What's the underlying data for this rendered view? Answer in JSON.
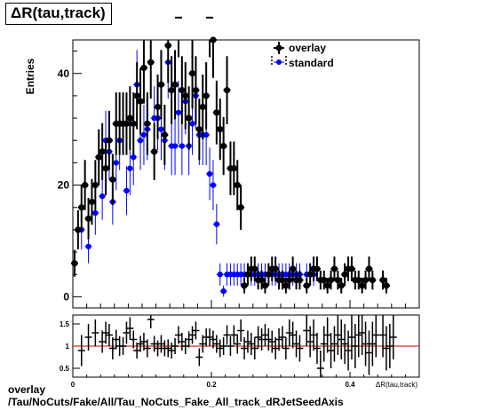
{
  "title": "ΔR(tau,track)",
  "caption": {
    "line1": "overlay",
    "line2": "/Tau/NoCuts/Fake/All/Tau_NoCuts_Fake_All_track_dRJetSeedAxis"
  },
  "colors": {
    "overlay": "#000000",
    "standard": "#0000ff",
    "ratio_line": "#cc0000"
  },
  "chart_data": [
    {
      "type": "scatter",
      "ylabel": "Entries",
      "xlabel": "ΔR(tau,track)",
      "xlim": [
        0,
        0.5
      ],
      "ylim": [
        -2,
        46
      ],
      "yticks": [
        0,
        20,
        40
      ],
      "legend_position": "top-right",
      "series": [
        {
          "name": "overlay",
          "x": [
            0.0025,
            0.0075,
            0.0125,
            0.0175,
            0.0225,
            0.0275,
            0.0325,
            0.0375,
            0.0425,
            0.0475,
            0.0525,
            0.0575,
            0.0625,
            0.0675,
            0.0725,
            0.0775,
            0.0825,
            0.0875,
            0.0925,
            0.0975,
            0.1025,
            0.1075,
            0.1125,
            0.1175,
            0.1225,
            0.1275,
            0.1325,
            0.1375,
            0.1425,
            0.1475,
            0.1525,
            0.1575,
            0.1625,
            0.1675,
            0.1725,
            0.1775,
            0.1825,
            0.1875,
            0.1925,
            0.1975,
            0.2025,
            0.2075,
            0.2125,
            0.2175,
            0.2225,
            0.2275,
            0.2325,
            0.2375,
            0.2425,
            0.2475,
            0.2525,
            0.2575,
            0.2625,
            0.2675,
            0.2725,
            0.2775,
            0.2825,
            0.2875,
            0.2925,
            0.2975,
            0.3025,
            0.3075,
            0.3125,
            0.3175,
            0.3225,
            0.3275,
            0.3375,
            0.3425,
            0.3475,
            0.3525,
            0.3575,
            0.3625,
            0.3675,
            0.3725,
            0.3775,
            0.3825,
            0.3875,
            0.3925,
            0.3975,
            0.4025,
            0.4075,
            0.4125,
            0.4175,
            0.4225,
            0.4275,
            0.4325,
            0.4475,
            0.4525
          ],
          "y": [
            6,
            12,
            16,
            20,
            14,
            17,
            20,
            25,
            26,
            23,
            28,
            21,
            31,
            31,
            31,
            31,
            32,
            31,
            36,
            35,
            41,
            31,
            42,
            26,
            34,
            38,
            29,
            45,
            37,
            38,
            50,
            37,
            36,
            32,
            40,
            37,
            30,
            34,
            36,
            50,
            46,
            33,
            30,
            27,
            37,
            23,
            23,
            20,
            16,
            2,
            4,
            5,
            5,
            3,
            3,
            2,
            4,
            5,
            5,
            3,
            3,
            2,
            3,
            5,
            3,
            3,
            2,
            4,
            5,
            5,
            3,
            3,
            2,
            3,
            5,
            3,
            2,
            4,
            5,
            5,
            3,
            3,
            2,
            3,
            5,
            3,
            3,
            2
          ],
          "err": [
            2.4,
            3.5,
            4,
            4.5,
            3.7,
            4.1,
            4.5,
            5,
            5.1,
            4.8,
            5.3,
            4.6,
            5.6,
            5.6,
            5.6,
            5.6,
            5.7,
            5.6,
            6,
            5.9,
            6.4,
            5.6,
            6.5,
            5.1,
            5.8,
            6.2,
            5.4,
            6.7,
            6.1,
            6.2,
            7.1,
            6.1,
            6,
            5.7,
            6.3,
            6.1,
            5.5,
            5.8,
            6,
            7.1,
            6.8,
            5.7,
            5.5,
            5.2,
            6.1,
            4.8,
            4.8,
            4.5,
            4,
            1.4,
            2,
            2.2,
            2.2,
            1.7,
            1.7,
            1.4,
            2,
            2.2,
            2.2,
            1.7,
            1.7,
            1.4,
            1.7,
            2.2,
            1.7,
            1.7,
            1.4,
            2,
            2.2,
            2.2,
            1.7,
            1.7,
            1.4,
            1.7,
            2.2,
            1.7,
            1.4,
            2,
            2.2,
            2.2,
            1.7,
            1.7,
            1.4,
            1.7,
            2.2,
            1.7,
            1.7,
            1.4
          ]
        },
        {
          "name": "standard",
          "x": [
            0.0125,
            0.0225,
            0.0325,
            0.0425,
            0.0475,
            0.0525,
            0.0575,
            0.0625,
            0.0675,
            0.0725,
            0.0775,
            0.0825,
            0.0875,
            0.0925,
            0.0975,
            0.1025,
            0.1075,
            0.1125,
            0.1175,
            0.1225,
            0.1275,
            0.1325,
            0.1375,
            0.1425,
            0.1475,
            0.1525,
            0.1575,
            0.1625,
            0.1675,
            0.1725,
            0.1775,
            0.1825,
            0.1875,
            0.1925,
            0.1975,
            0.2025,
            0.2075,
            0.2125,
            0.2175,
            0.2225,
            0.2275,
            0.2325,
            0.2375,
            0.2425,
            0.2475,
            0.2525,
            0.2575,
            0.2625,
            0.2675,
            0.2725,
            0.2775,
            0.2825,
            0.2875,
            0.2925,
            0.2975,
            0.3025,
            0.3075,
            0.3125,
            0.3175,
            0.3225,
            0.3275,
            0.3375,
            0.3425,
            0.3475
          ],
          "y": [
            12,
            9,
            15,
            18,
            28,
            26,
            17,
            24,
            28,
            31,
            19,
            23,
            25,
            38,
            28,
            29,
            30,
            42,
            32,
            32,
            30,
            28,
            42,
            27,
            27,
            33,
            27,
            35,
            27,
            31,
            36,
            29,
            29,
            29,
            22,
            20,
            13,
            4,
            1,
            4,
            4,
            4,
            4,
            4,
            4,
            4,
            4,
            4,
            4,
            4,
            4,
            4,
            4,
            4,
            4,
            4,
            4,
            4,
            4,
            4,
            4,
            4,
            4,
            4
          ],
          "err": [
            3.5,
            3,
            3.9,
            4.2,
            5.3,
            5.1,
            4.1,
            4.9,
            5.3,
            5.6,
            4.4,
            4.8,
            5,
            6.2,
            5.3,
            5.4,
            5.5,
            6.5,
            5.7,
            5.7,
            5.5,
            5.3,
            6.5,
            5.2,
            5.2,
            5.7,
            5.2,
            5.9,
            5.2,
            5.6,
            6,
            5.4,
            5.4,
            5.4,
            4.7,
            4.5,
            3.6,
            2,
            1,
            2,
            2,
            2,
            2,
            2,
            2,
            2,
            2,
            2,
            2,
            2,
            2,
            2,
            2,
            2,
            2,
            2,
            2,
            2,
            2,
            2,
            2,
            2,
            2,
            2
          ]
        }
      ]
    },
    {
      "type": "scatter",
      "xlim": [
        0,
        0.5
      ],
      "ylim": [
        0.3,
        1.7
      ],
      "yticks": [
        0.5,
        1,
        1.5
      ],
      "xticks": [
        0,
        0.2,
        0.4
      ],
      "xlabel": "ΔR(tau,track)",
      "reference_line": 1,
      "series": [
        {
          "name": "ratio",
          "x": [
            0.0125,
            0.0225,
            0.0325,
            0.0425,
            0.0475,
            0.0525,
            0.0575,
            0.0625,
            0.0675,
            0.0725,
            0.0775,
            0.0825,
            0.0875,
            0.0925,
            0.0975,
            0.1025,
            0.1075,
            0.1125,
            0.1175,
            0.1225,
            0.1275,
            0.1325,
            0.1375,
            0.1425,
            0.1475,
            0.1525,
            0.1575,
            0.1625,
            0.1675,
            0.1725,
            0.1775,
            0.1825,
            0.1875,
            0.1925,
            0.1975,
            0.2025,
            0.2075,
            0.2125,
            0.2175,
            0.2225,
            0.2275,
            0.2325,
            0.2375,
            0.2425,
            0.2475,
            0.2525,
            0.2575,
            0.2625,
            0.2675,
            0.2725,
            0.2775,
            0.2825,
            0.2875,
            0.2925,
            0.2975,
            0.3025,
            0.3075,
            0.3125,
            0.3175,
            0.3225,
            0.3275,
            0.3375,
            0.3425,
            0.3475,
            0.3525,
            0.3575,
            0.3625,
            0.3675,
            0.3725,
            0.3775,
            0.3825,
            0.3875,
            0.3925,
            0.3975,
            0.4025,
            0.4075,
            0.4125,
            0.4175,
            0.4225,
            0.4275,
            0.4325,
            0.4375,
            0.4475,
            0.4525,
            0.4575,
            0.4625
          ],
          "y": [
            0.9,
            1.2,
            1.3,
            1.1,
            1.3,
            1.25,
            0.95,
            1.15,
            1.0,
            1.0,
            1.3,
            1.4,
            1.15,
            0.9,
            1.05,
            1.1,
            0.95,
            1.6,
            1.05,
            0.95,
            1.05,
            0.95,
            0.95,
            0.9,
            1.0,
            1.25,
            1.1,
            1.0,
            1.15,
            1.25,
            1.35,
            0.75,
            1.05,
            1.2,
            1.2,
            1.15,
            1.05,
            0.95,
            1.0,
            1.25,
            1.0,
            1.25,
            1.05,
            1.35,
            0.95,
            1.1,
            1.05,
            0.95,
            1.2,
            1.15,
            1.25,
            1.15,
            1.1,
            0.95,
            1.15,
            1.2,
            0.95,
            1.3,
            1.25,
            1.05,
            0.95,
            1.35,
            1.1,
            1.25,
            0.95,
            0.5,
            1.05,
            1.25,
            0.9,
            1.05,
            1.25,
            1.15,
            1.05,
            0.9,
            1.2,
            1.0,
            1.25,
            1.3,
            1.05,
            0.85,
            1.05,
            1.25,
            1.25,
            0.95,
            1.0,
            1.2
          ],
          "err": [
            0.35,
            0.3,
            0.3,
            0.25,
            0.25,
            0.25,
            0.25,
            0.22,
            0.22,
            0.2,
            0.25,
            0.25,
            0.2,
            0.18,
            0.18,
            0.2,
            0.2,
            0.2,
            0.18,
            0.18,
            0.2,
            0.18,
            0.2,
            0.18,
            0.18,
            0.2,
            0.2,
            0.18,
            0.18,
            0.2,
            0.2,
            0.2,
            0.2,
            0.2,
            0.2,
            0.2,
            0.2,
            0.2,
            0.2,
            0.22,
            0.22,
            0.22,
            0.22,
            0.25,
            0.25,
            0.25,
            0.25,
            0.25,
            0.25,
            0.25,
            0.25,
            0.25,
            0.25,
            0.25,
            0.25,
            0.25,
            0.25,
            0.3,
            0.3,
            0.3,
            0.3,
            0.35,
            0.35,
            0.35,
            0.35,
            0.4,
            0.4,
            0.4,
            0.4,
            0.4,
            0.45,
            0.45,
            0.45,
            0.45,
            0.5,
            0.5,
            0.5,
            0.5,
            0.5,
            0.5,
            0.5,
            0.5,
            0.5,
            0.5,
            0.5,
            0.5
          ]
        }
      ]
    }
  ]
}
